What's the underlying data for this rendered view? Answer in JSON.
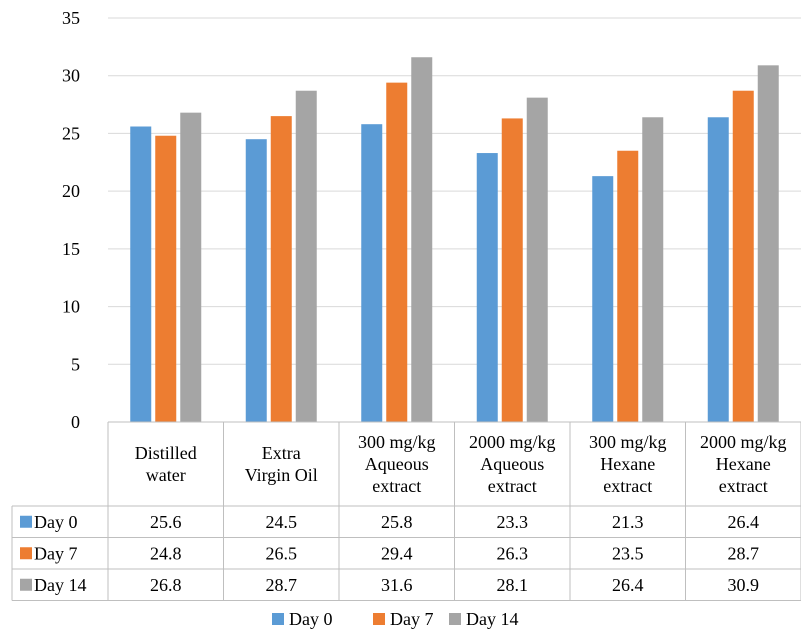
{
  "chart_data": {
    "type": "bar",
    "title": "",
    "xlabel": "",
    "ylabel": "",
    "ylim": [
      0,
      35
    ],
    "yticks": [
      0,
      5,
      10,
      15,
      20,
      25,
      30,
      35
    ],
    "grid": true,
    "legend_placement": "bottom",
    "categories": [
      [
        "Distilled",
        "water"
      ],
      [
        "Extra",
        "Virgin Oil"
      ],
      [
        "300 mg/kg",
        "Aqueous",
        "extract"
      ],
      [
        "2000 mg/kg",
        "Aqueous",
        "extract"
      ],
      [
        "300 mg/kg",
        "Hexane",
        "extract"
      ],
      [
        "2000 mg/kg",
        "Hexane",
        "extract"
      ]
    ],
    "series": [
      {
        "name": "Day 0",
        "color": "#5b9bd5",
        "values": [
          25.6,
          24.5,
          25.8,
          23.3,
          21.3,
          26.4
        ]
      },
      {
        "name": "Day 7",
        "color": "#ed7d31",
        "values": [
          24.8,
          26.5,
          29.4,
          26.3,
          23.5,
          28.7
        ]
      },
      {
        "name": "Day 14",
        "color": "#a5a5a5",
        "values": [
          26.8,
          28.7,
          31.6,
          28.1,
          26.4,
          30.9
        ]
      }
    ],
    "data_table": true
  }
}
